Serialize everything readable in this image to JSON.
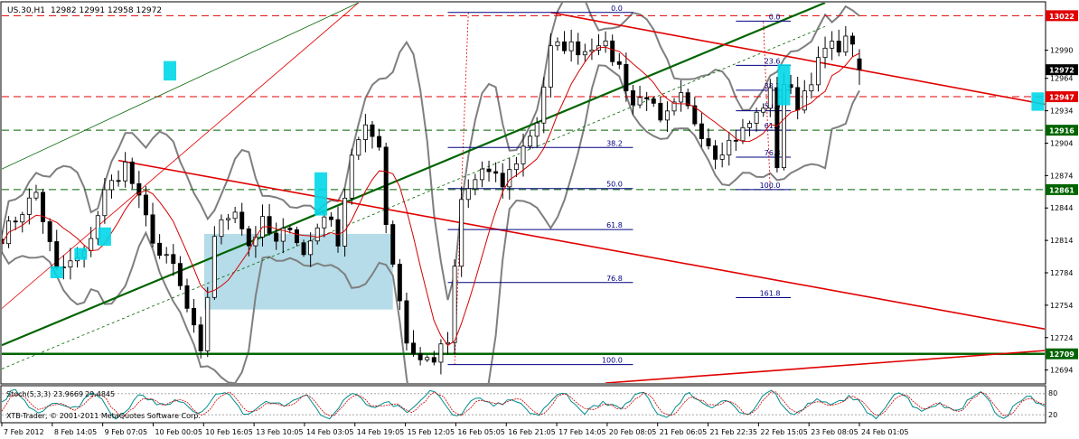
{
  "header": {
    "symbol_label": "US.30,H1",
    "ohlc_label": "12982 12991 12958 12972"
  },
  "footer": {
    "copyright": "XTB-Trader, © 2001-2011 MetaQuotes Software Corp."
  },
  "stoch_panel": {
    "label": "Stoch(5,3,3)",
    "value_1": "23.9669",
    "value_2": "29.4845",
    "scale_top": "80",
    "scale_bottom": "20"
  },
  "colors": {
    "background": "#ffffff",
    "bull_candle": "#ffffff",
    "bear_candle": "#000000",
    "bollinger": "#7f7f7f",
    "ma": "#d40000",
    "trend_red": "#e00000",
    "trend_green": "#006400",
    "fib": "#000080",
    "tag_red": "#e00000",
    "tag_green": "#006400",
    "tag_black": "#000000",
    "highlight": "#add8e6",
    "marker": "#00d7e8"
  },
  "chart_data": {
    "type": "candlestick",
    "symbol": "US.30",
    "timeframe": "H1",
    "last_ohlc": {
      "open": 12982,
      "high": 12991,
      "low": 12958,
      "close": 12972
    },
    "y_range": [
      12682,
      13034
    ],
    "x_range": [
      0,
      152
    ],
    "y_ticks": [
      12990,
      12964,
      12934,
      12904,
      12874,
      12844,
      12814,
      12784,
      12754,
      12724,
      12694
    ],
    "x_ticks": [
      {
        "x": 0,
        "label": "7 Feb 2012"
      },
      {
        "x": 7,
        "label": "8 Feb 14:05"
      },
      {
        "x": 14,
        "label": "9 Feb 07:05"
      },
      {
        "x": 21,
        "label": "10 Feb 00:05"
      },
      {
        "x": 28,
        "label": "10 Feb 16:05"
      },
      {
        "x": 35,
        "label": "13 Feb 10:05"
      },
      {
        "x": 42,
        "label": "14 Feb 03:05"
      },
      {
        "x": 49,
        "label": "14 Feb 19:05"
      },
      {
        "x": 56,
        "label": "15 Feb 12:05"
      },
      {
        "x": 63,
        "label": "16 Feb 05:05"
      },
      {
        "x": 70,
        "label": "16 Feb 21:05"
      },
      {
        "x": 77,
        "label": "17 Feb 14:05"
      },
      {
        "x": 84,
        "label": "20 Feb 08:05"
      },
      {
        "x": 91,
        "label": "21 Feb 06:05"
      },
      {
        "x": 98,
        "label": "21 Feb 22:35"
      },
      {
        "x": 105,
        "label": "22 Feb 15:05"
      },
      {
        "x": 112,
        "label": "23 Feb 08:05"
      },
      {
        "x": 119,
        "label": "24 Feb 01:05"
      }
    ],
    "horizontal_levels": [
      {
        "value": 13022,
        "label": "13022",
        "color": "#e00000",
        "style": "dashed"
      },
      {
        "value": 12972,
        "label": "12972",
        "color": "#000000",
        "style": "none"
      },
      {
        "value": 12947,
        "label": "12947",
        "color": "#e00000",
        "style": "dashed"
      },
      {
        "value": 12916,
        "label": "12916",
        "color": "#006400",
        "style": "dashed"
      },
      {
        "value": 12861,
        "label": "12861",
        "color": "#006400",
        "style": "dashed"
      },
      {
        "value": 12709,
        "label": "12709",
        "color": "#006400",
        "style": "solid"
      }
    ],
    "fib_large": {
      "x_start": 65,
      "x_end": 92,
      "label_x": 91,
      "levels": [
        {
          "label": "0.0",
          "value": 13025
        },
        {
          "label": "38.2",
          "value": 12900
        },
        {
          "label": "50.0",
          "value": 12862
        },
        {
          "label": "61.8",
          "value": 12824
        },
        {
          "label": "76.8",
          "value": 12775
        },
        {
          "label": "100.0",
          "value": 12699
        }
      ]
    },
    "fib_small": {
      "x_start": 107,
      "x_end": 115,
      "label_x": 114,
      "levels": [
        {
          "label": "0.0",
          "value": 13017
        },
        {
          "label": "23.6",
          "value": 12976
        },
        {
          "label": "38.2",
          "value": 12953
        },
        {
          "label": "50.0",
          "value": 12934
        },
        {
          "label": "61.8",
          "value": 12916
        },
        {
          "label": "76.8",
          "value": 12891
        },
        {
          "label": "100.0",
          "value": 12861
        },
        {
          "label": "161.8",
          "value": 12761
        }
      ]
    },
    "trend_lines": [
      {
        "name": "red-upper-channel",
        "color": "#e00000",
        "width": 0.8,
        "dash": "",
        "points": [
          [
            0,
            12751
          ],
          [
            52,
            13034
          ]
        ]
      },
      {
        "name": "green-upper-channel",
        "color": "#006400",
        "width": 0.8,
        "dash": "",
        "points": [
          [
            0,
            12880
          ],
          [
            52,
            13034
          ]
        ]
      },
      {
        "name": "green-main-channel",
        "color": "#006400",
        "width": 2.2,
        "dash": "",
        "points": [
          [
            0,
            12717
          ],
          [
            120,
            13034
          ]
        ]
      },
      {
        "name": "green-mid-channel",
        "color": "#006400",
        "width": 0.8,
        "dash": "3,3",
        "points": [
          [
            0,
            12695
          ],
          [
            120,
            13012
          ]
        ]
      },
      {
        "name": "red-falling-line-1",
        "color": "#e00000",
        "width": 1.6,
        "dash": "",
        "points": [
          [
            17,
            12888
          ],
          [
            152,
            12732
          ]
        ]
      },
      {
        "name": "red-falling-line-2",
        "color": "#e00000",
        "width": 1.6,
        "dash": "",
        "points": [
          [
            80,
            13025
          ],
          [
            152,
            12940
          ]
        ]
      },
      {
        "name": "red-rising-bottom",
        "color": "#e00000",
        "width": 1.6,
        "dash": "",
        "points": [
          [
            88,
            12682
          ],
          [
            152,
            12712
          ]
        ]
      },
      {
        "name": "red-vertical-1",
        "color": "#e00000",
        "width": 0.8,
        "dash": "2,2",
        "points": [
          [
            66,
            12699
          ],
          [
            68,
            13025
          ]
        ]
      },
      {
        "name": "red-vertical-2",
        "color": "#e00000",
        "width": 0.8,
        "dash": "2,2",
        "points": [
          [
            112,
            12861
          ],
          [
            111,
            13017
          ]
        ]
      }
    ],
    "highlight_box": {
      "x1": 29.5,
      "x2": 57,
      "y1": 12750,
      "y2": 12820
    },
    "markers": [
      {
        "x": 8,
        "y1": 12779,
        "y2": 12790
      },
      {
        "x": 11.5,
        "y1": 12796,
        "y2": 12807
      },
      {
        "x": 15,
        "y1": 12809,
        "y2": 12826
      },
      {
        "x": 24.5,
        "y1": 12962,
        "y2": 12980
      },
      {
        "x": 46.5,
        "y1": 12837,
        "y2": 12877
      },
      {
        "x": 114,
        "y1": 12939,
        "y2": 12977
      },
      {
        "x": 151,
        "y1": 12934,
        "y2": 12951
      }
    ],
    "anchor_points": [
      [
        0,
        12818
      ],
      [
        5,
        12858
      ],
      [
        8,
        12785
      ],
      [
        12,
        12800
      ],
      [
        15,
        12858
      ],
      [
        18,
        12884
      ],
      [
        20,
        12850
      ],
      [
        23,
        12800
      ],
      [
        25,
        12790
      ],
      [
        28,
        12730
      ],
      [
        29,
        12706
      ],
      [
        31,
        12820
      ],
      [
        34,
        12845
      ],
      [
        36,
        12810
      ],
      [
        38,
        12830
      ],
      [
        40,
        12810
      ],
      [
        42,
        12830
      ],
      [
        44,
        12800
      ],
      [
        47,
        12840
      ],
      [
        49,
        12815
      ],
      [
        51,
        12895
      ],
      [
        53,
        12915
      ],
      [
        55,
        12905
      ],
      [
        56,
        12830
      ],
      [
        58,
        12760
      ],
      [
        59,
        12720
      ],
      [
        61,
        12703
      ],
      [
        63,
        12705
      ],
      [
        65,
        12720
      ],
      [
        67,
        12850
      ],
      [
        70,
        12880
      ],
      [
        73,
        12865
      ],
      [
        76,
        12900
      ],
      [
        78,
        12925
      ],
      [
        80,
        12990
      ],
      [
        82,
        12995
      ],
      [
        85,
        12990
      ],
      [
        87,
        13000
      ],
      [
        90,
        12975
      ],
      [
        92,
        12940
      ],
      [
        94,
        12950
      ],
      [
        96,
        12920
      ],
      [
        99,
        12945
      ],
      [
        101,
        12925
      ],
      [
        104,
        12895
      ],
      [
        106,
        12905
      ],
      [
        108,
        12915
      ],
      [
        110,
        12930
      ],
      [
        112,
        12950
      ],
      [
        113,
        12885
      ],
      [
        114,
        12960
      ],
      [
        116,
        12940
      ],
      [
        118,
        12965
      ],
      [
        120,
        12990
      ],
      [
        122,
        12995
      ],
      [
        124,
        13000
      ],
      [
        125,
        12972
      ]
    ]
  }
}
